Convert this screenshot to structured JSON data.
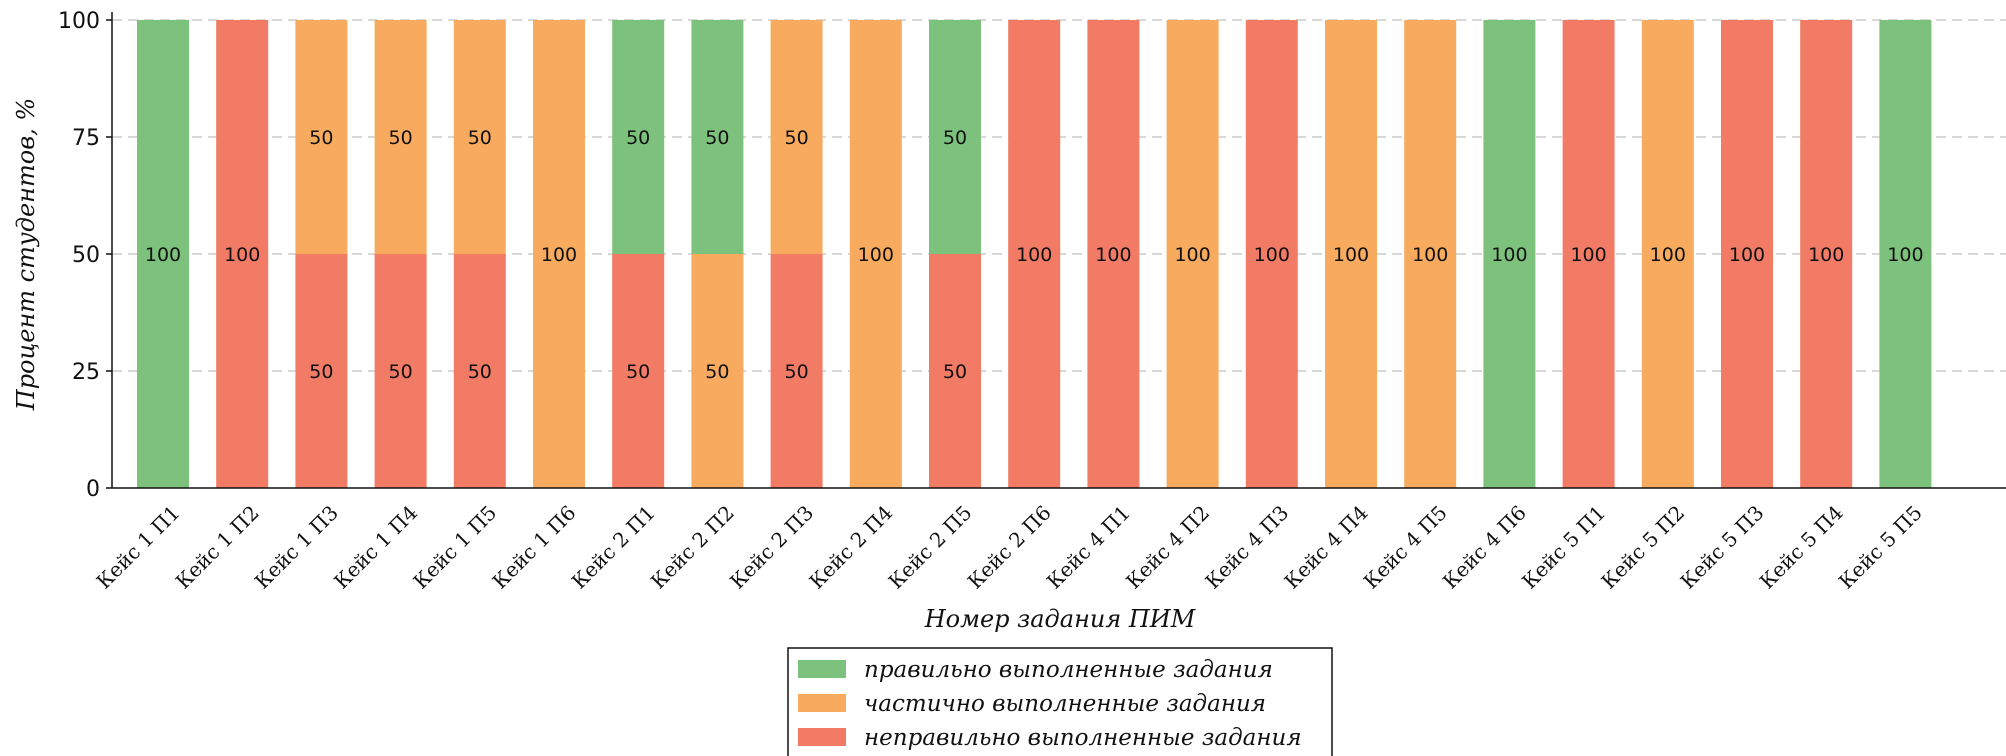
{
  "chart_data": {
    "type": "bar",
    "stacked": true,
    "xlabel": "Номер задания ПИМ",
    "ylabel": "Процент студентов, %",
    "ylim": [
      0,
      100
    ],
    "yticks": [
      0,
      25,
      50,
      75,
      100
    ],
    "grid": "horizontal dashed",
    "legend_position": "bottom-center",
    "categories": [
      "Кейс 1 П1",
      "Кейс 1 П2",
      "Кейс 1 П3",
      "Кейс 1 П4",
      "Кейс 1 П5",
      "Кейс 1 П6",
      "Кейс 2 П1",
      "Кейс 2 П2",
      "Кейс 2 П3",
      "Кейс 2 П4",
      "Кейс 2 П5",
      "Кейс 2 П6",
      "Кейс 4 П1",
      "Кейс 4 П2",
      "Кейс 4 П3",
      "Кейс 4 П4",
      "Кейс 4 П5",
      "Кейс 4 П6",
      "Кейс 5 П1",
      "Кейс 5 П2",
      "Кейс 5 П3",
      "Кейс 5 П4",
      "Кейс 5 П5"
    ],
    "segments": [
      [
        {
          "s": "correct",
          "v": 100
        }
      ],
      [
        {
          "s": "incorrect",
          "v": 100
        }
      ],
      [
        {
          "s": "incorrect",
          "v": 50
        },
        {
          "s": "partial",
          "v": 50
        }
      ],
      [
        {
          "s": "incorrect",
          "v": 50
        },
        {
          "s": "partial",
          "v": 50
        }
      ],
      [
        {
          "s": "incorrect",
          "v": 50
        },
        {
          "s": "partial",
          "v": 50
        }
      ],
      [
        {
          "s": "partial",
          "v": 100
        }
      ],
      [
        {
          "s": "incorrect",
          "v": 50
        },
        {
          "s": "correct",
          "v": 50
        }
      ],
      [
        {
          "s": "partial",
          "v": 50
        },
        {
          "s": "correct",
          "v": 50
        }
      ],
      [
        {
          "s": "incorrect",
          "v": 50
        },
        {
          "s": "partial",
          "v": 50
        }
      ],
      [
        {
          "s": "partial",
          "v": 100
        }
      ],
      [
        {
          "s": "incorrect",
          "v": 50
        },
        {
          "s": "correct",
          "v": 50
        }
      ],
      [
        {
          "s": "incorrect",
          "v": 100
        }
      ],
      [
        {
          "s": "incorrect",
          "v": 100
        }
      ],
      [
        {
          "s": "partial",
          "v": 100
        }
      ],
      [
        {
          "s": "incorrect",
          "v": 100
        }
      ],
      [
        {
          "s": "partial",
          "v": 100
        }
      ],
      [
        {
          "s": "partial",
          "v": 100
        }
      ],
      [
        {
          "s": "correct",
          "v": 100
        }
      ],
      [
        {
          "s": "incorrect",
          "v": 100
        }
      ],
      [
        {
          "s": "partial",
          "v": 100
        }
      ],
      [
        {
          "s": "incorrect",
          "v": 100
        }
      ],
      [
        {
          "s": "incorrect",
          "v": 100
        }
      ],
      [
        {
          "s": "correct",
          "v": 100
        }
      ]
    ],
    "series": [
      {
        "key": "correct",
        "name": "правильно выполненные задания",
        "color": "#7dc27c"
      },
      {
        "key": "partial",
        "name": "частично выполненные задания",
        "color": "#f8ab5e"
      },
      {
        "key": "incorrect",
        "name": "неправильно выполненные задания",
        "color": "#f27b66"
      }
    ]
  }
}
